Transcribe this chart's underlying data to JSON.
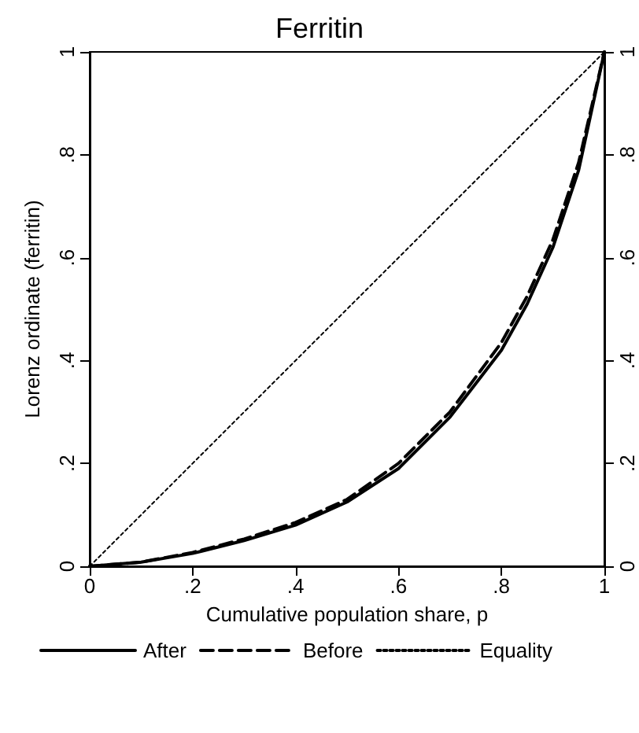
{
  "chart_data": {
    "type": "line",
    "title": "Ferritin",
    "xlabel": "Cumulative population share, p",
    "ylabel": "Lorenz ordinate (ferritin)",
    "xlim": [
      0,
      1
    ],
    "xticks": [
      0,
      {
        "value": 0.2,
        "label": ".2"
      },
      {
        "value": 0.4,
        "label": ".4"
      },
      {
        "value": 0.6,
        "label": ".6"
      },
      {
        "value": 0.8,
        "label": ".8"
      },
      1
    ],
    "ylim": [
      0,
      1
    ],
    "yticks": [
      0,
      {
        "value": 0.2,
        "label": ".2"
      },
      {
        "value": 0.4,
        "label": ".4"
      },
      {
        "value": 0.6,
        "label": ".6"
      },
      {
        "value": 0.8,
        "label": ".8"
      },
      1
    ],
    "y2lim": [
      0,
      1
    ],
    "y2ticks": [
      0,
      {
        "value": 0.2,
        "label": ".2"
      },
      {
        "value": 0.4,
        "label": ".4"
      },
      {
        "value": 0.6,
        "label": ".6"
      },
      {
        "value": 0.8,
        "label": ".8"
      },
      1
    ],
    "grid": false,
    "legend": "bottom",
    "marker": "none",
    "series": [
      {
        "name": "After",
        "color": "#000000",
        "line_style": "solid",
        "x": [
          0,
          0.1,
          0.2,
          0.3,
          0.4,
          0.5,
          0.6,
          0.7,
          0.8,
          0.85,
          0.9,
          0.95,
          1
        ],
        "values": [
          0,
          0.008,
          0.025,
          0.05,
          0.08,
          0.125,
          0.19,
          0.29,
          0.42,
          0.51,
          0.62,
          0.77,
          1
        ]
      },
      {
        "name": "Before",
        "color": "#000000",
        "line_style": "dashed",
        "x": [
          0,
          0.1,
          0.2,
          0.3,
          0.4,
          0.5,
          0.6,
          0.7,
          0.8,
          0.85,
          0.9,
          0.95,
          1
        ],
        "values": [
          0,
          0.008,
          0.027,
          0.053,
          0.085,
          0.13,
          0.2,
          0.3,
          0.435,
          0.525,
          0.635,
          0.785,
          1
        ]
      },
      {
        "name": "Equality",
        "color": "#000000",
        "line_style": "dotted",
        "x": [
          0,
          1
        ],
        "values": [
          0,
          1
        ]
      }
    ]
  }
}
